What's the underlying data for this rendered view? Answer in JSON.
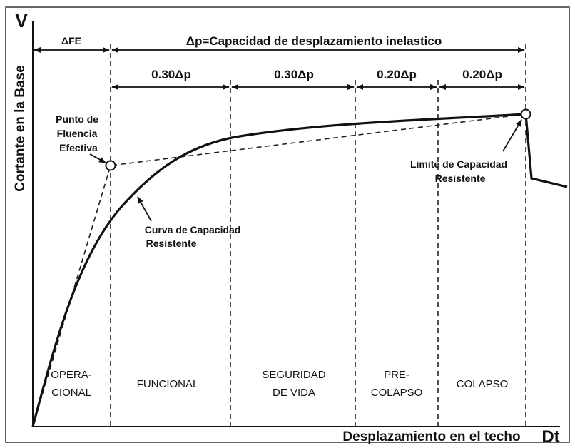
{
  "axes": {
    "y_symbol": "V",
    "y_label": "Cortante en la Base",
    "x_label": "Desplazamiento en el techo",
    "x_symbol": "Dt"
  },
  "spans": {
    "top": [
      {
        "label": "ΔFE"
      },
      {
        "label": "Δp=Capacidad de desplazamiento inelastico"
      }
    ],
    "second": [
      {
        "label": "0.30Δp"
      },
      {
        "label": "0.30Δp"
      },
      {
        "label": "0.20Δp"
      },
      {
        "label": "0.20Δp"
      }
    ]
  },
  "annotations": {
    "yield_point": [
      "Punto de",
      "Fluencia",
      "Efectiva"
    ],
    "capacity_curve": [
      "Curva de Capacidad",
      "Resistente"
    ],
    "capacity_limit": [
      "Limite de Capacidad",
      "Resistente"
    ]
  },
  "zones": [
    [
      "OPERA-",
      "CIONAL"
    ],
    [
      "FUNCIONAL"
    ],
    [
      "SEGURIDAD",
      "DE VIDA"
    ],
    [
      "PRE-",
      "COLAPSO"
    ],
    [
      "COLAPSO"
    ]
  ]
}
